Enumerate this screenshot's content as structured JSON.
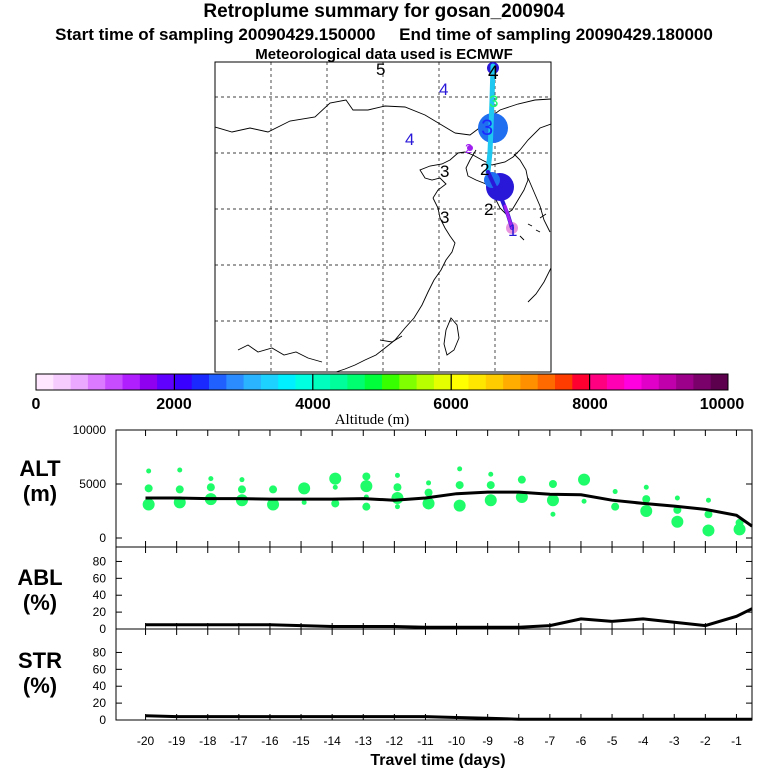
{
  "title": {
    "line1": "Retroplume summary for gosan_200904",
    "line2": "Start time of sampling 20090429.150000     End time of sampling 20090429.180000",
    "line3": "Meteorological data used is ECMWF"
  },
  "map": {
    "plume_labels": [
      "5",
      "4",
      "4",
      "3",
      "4",
      "3",
      "3",
      "2",
      "3",
      "2",
      "2",
      "1"
    ],
    "colors": {
      "plume_light": "#1ec8f0",
      "plume_blue": "#1f6ff0",
      "plume_dark": "#2a18d8",
      "plume_purple": "#a020f0",
      "pink": "#e27ad8"
    }
  },
  "colorbar": {
    "label": "Altitude (m)",
    "ticks": [
      "0",
      "2000",
      "4000",
      "6000",
      "8000",
      "10000"
    ],
    "colors": [
      "#ffe8ff",
      "#f6ccff",
      "#eaa9ff",
      "#db7aff",
      "#c84cff",
      "#b020ff",
      "#9000f0",
      "#6000ff",
      "#3a00ff",
      "#1a2aff",
      "#1f60ff",
      "#2a8cff",
      "#2ab4ff",
      "#1ed2ff",
      "#00f0ff",
      "#00ffe0",
      "#00ffbe",
      "#00ff9a",
      "#00ff70",
      "#00ff3a",
      "#38ff00",
      "#80ff00",
      "#b8ff00",
      "#e6ff00",
      "#ffff00",
      "#ffe600",
      "#ffcc00",
      "#ffae00",
      "#ff9000",
      "#ff6a00",
      "#ff3c00",
      "#ff0030",
      "#ff0080",
      "#ff00b4",
      "#ff00e0",
      "#e000c8",
      "#c000aa",
      "#9c008a",
      "#7a006a",
      "#5c004e"
    ]
  },
  "chart_data": [
    {
      "type": "line",
      "name": "ALT",
      "ylabel": "ALT\n(m)",
      "ylabel_line1": "ALT",
      "ylabel_line2": "(m)",
      "ylim": [
        0,
        10000
      ],
      "yticks": [
        "0",
        "5000",
        "10000"
      ],
      "x": [
        -20,
        -19,
        -18,
        -17,
        -16,
        -15,
        -14,
        -13,
        -12,
        -11,
        -10,
        -9,
        -8,
        -7,
        -6,
        -5,
        -4,
        -3,
        -2,
        -1,
        -0.5
      ],
      "mean_altitude": [
        3700,
        3700,
        3650,
        3650,
        3600,
        3600,
        3600,
        3650,
        3500,
        3700,
        4100,
        4250,
        4250,
        4050,
        4000,
        3500,
        3200,
        2950,
        2650,
        2100,
        1100
      ],
      "scatter_color": "#1efc6a",
      "scatter_points": [
        {
          "x": -19.9,
          "y": 3100
        },
        {
          "x": -19.9,
          "y": 4600
        },
        {
          "x": -19.9,
          "y": 6200
        },
        {
          "x": -18.9,
          "y": 3300
        },
        {
          "x": -18.9,
          "y": 4500
        },
        {
          "x": -18.9,
          "y": 6300
        },
        {
          "x": -17.9,
          "y": 3600
        },
        {
          "x": -17.9,
          "y": 4700
        },
        {
          "x": -17.9,
          "y": 5500
        },
        {
          "x": -16.9,
          "y": 3500
        },
        {
          "x": -16.9,
          "y": 4500
        },
        {
          "x": -16.9,
          "y": 5400
        },
        {
          "x": -15.9,
          "y": 3100
        },
        {
          "x": -15.9,
          "y": 4500
        },
        {
          "x": -14.9,
          "y": 3300
        },
        {
          "x": -14.9,
          "y": 4600
        },
        {
          "x": -13.9,
          "y": 3200
        },
        {
          "x": -13.9,
          "y": 4700
        },
        {
          "x": -13.9,
          "y": 5500
        },
        {
          "x": -12.9,
          "y": 2900
        },
        {
          "x": -12.9,
          "y": 3800
        },
        {
          "x": -12.9,
          "y": 4800
        },
        {
          "x": -12.9,
          "y": 5700
        },
        {
          "x": -11.9,
          "y": 2900
        },
        {
          "x": -11.9,
          "y": 3700
        },
        {
          "x": -11.9,
          "y": 4700
        },
        {
          "x": -11.9,
          "y": 5800
        },
        {
          "x": -10.9,
          "y": 3200
        },
        {
          "x": -10.9,
          "y": 4200
        },
        {
          "x": -10.9,
          "y": 5100
        },
        {
          "x": -9.9,
          "y": 3000
        },
        {
          "x": -9.9,
          "y": 4900
        },
        {
          "x": -9.9,
          "y": 6400
        },
        {
          "x": -8.9,
          "y": 3500
        },
        {
          "x": -8.9,
          "y": 4900
        },
        {
          "x": -8.9,
          "y": 5900
        },
        {
          "x": -7.9,
          "y": 3800
        },
        {
          "x": -7.9,
          "y": 5400
        },
        {
          "x": -6.9,
          "y": 2200
        },
        {
          "x": -6.9,
          "y": 3500
        },
        {
          "x": -6.9,
          "y": 5000
        },
        {
          "x": -5.9,
          "y": 3400
        },
        {
          "x": -5.9,
          "y": 5400
        },
        {
          "x": -4.9,
          "y": 2900
        },
        {
          "x": -4.9,
          "y": 4300
        },
        {
          "x": -3.9,
          "y": 2500
        },
        {
          "x": -3.9,
          "y": 3600
        },
        {
          "x": -3.9,
          "y": 4700
        },
        {
          "x": -2.9,
          "y": 1500
        },
        {
          "x": -2.9,
          "y": 2600
        },
        {
          "x": -2.9,
          "y": 3700
        },
        {
          "x": -1.9,
          "y": 700
        },
        {
          "x": -1.9,
          "y": 2200
        },
        {
          "x": -1.9,
          "y": 3500
        },
        {
          "x": -0.9,
          "y": 800
        },
        {
          "x": -0.9,
          "y": 1400
        }
      ]
    },
    {
      "type": "line",
      "name": "ABL",
      "ylabel": "ABL\n(%)",
      "ylabel_line1": "ABL",
      "ylabel_line2": "(%)",
      "ylim": [
        0,
        90
      ],
      "yticks": [
        "0",
        "20",
        "40",
        "60",
        "80"
      ],
      "x": [
        -20,
        -19,
        -18,
        -17,
        -16,
        -15,
        -14,
        -13,
        -12,
        -11,
        -10,
        -9,
        -8,
        -7,
        -6,
        -5,
        -4,
        -3,
        -2,
        -1,
        -0.5
      ],
      "values": [
        5,
        5,
        5,
        5,
        5,
        4,
        3,
        3,
        3,
        2,
        2,
        2,
        2,
        4,
        12,
        9,
        12,
        8,
        4,
        15,
        24
      ]
    },
    {
      "type": "line",
      "name": "STR",
      "ylabel": "STR\n(%)",
      "ylabel_line1": "STR",
      "ylabel_line2": "(%)",
      "ylim": [
        0,
        90
      ],
      "yticks": [
        "0",
        "20",
        "40",
        "60",
        "80"
      ],
      "x": [
        -20,
        -19,
        -18,
        -17,
        -16,
        -15,
        -14,
        -13,
        -12,
        -11,
        -10,
        -9,
        -8,
        -7,
        -6,
        -5,
        -4,
        -3,
        -2,
        -1,
        -0.5
      ],
      "values": [
        5,
        4,
        4,
        4,
        4,
        4,
        4,
        4,
        4,
        4,
        3,
        2,
        1,
        1,
        1,
        1,
        1,
        1,
        1,
        1,
        1
      ]
    }
  ],
  "xaxis": {
    "label": "Travel time (days)",
    "ticks": [
      "-20",
      "-19",
      "-18",
      "-17",
      "-16",
      "-15",
      "-14",
      "-13",
      "-12",
      "-11",
      "-10",
      "-9",
      "-8",
      "-7",
      "-6",
      "-5",
      "-4",
      "-3",
      "-2",
      "-1"
    ]
  }
}
